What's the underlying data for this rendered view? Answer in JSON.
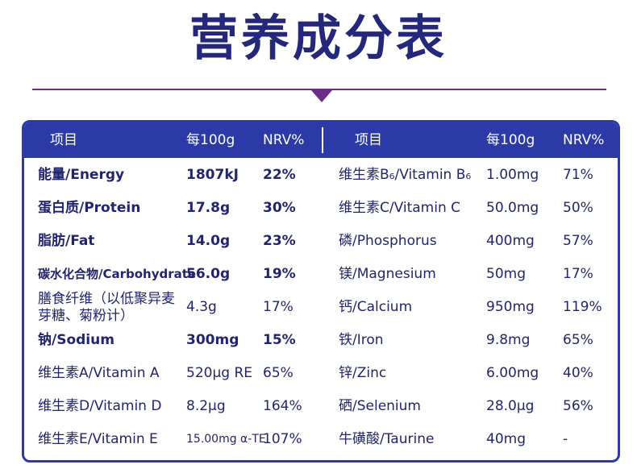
{
  "title": "营养成分表",
  "headers": {
    "left": {
      "item": "项目",
      "per100": "每100g",
      "nrv": "NRV%"
    },
    "right": {
      "item": "项目",
      "per100": "每100g",
      "nrv": "NRV%"
    }
  },
  "left_rows": [
    {
      "name": "能量/Energy",
      "value": "1807kJ",
      "nrv": "22%",
      "bold": true
    },
    {
      "name": "蛋白质/Protein",
      "value": "17.8g",
      "nrv": "30%",
      "bold": true
    },
    {
      "name": "脂肪/Fat",
      "value": "14.0g",
      "nrv": "23%",
      "bold": true
    },
    {
      "name": "碳水化合物/Carbohydrate",
      "value": "56.0g",
      "nrv": "19%",
      "bold": true
    },
    {
      "name": "膳食纤维（以低聚异麦芽糖、菊粉计）",
      "value": "4.3g",
      "nrv": "17%",
      "bold": false
    },
    {
      "name": "钠/Sodium",
      "value": "300mg",
      "nrv": "15%",
      "bold": true
    },
    {
      "name": "维生素A/Vitamin A",
      "value": "520µg RE",
      "nrv": "65%",
      "bold": false
    },
    {
      "name": "维生素D/Vitamin D",
      "value": "8.2µg",
      "nrv": "164%",
      "bold": false
    },
    {
      "name": "维生素E/Vitamin E",
      "value": "15.00mg α-TE",
      "nrv": "107%",
      "bold": false
    }
  ],
  "right_rows": [
    {
      "name": "维生素B₆/Vitamin B₆",
      "value": "1.00mg",
      "nrv": "71%"
    },
    {
      "name": "维生素C/Vitamin C",
      "value": "50.0mg",
      "nrv": "50%"
    },
    {
      "name": "磷/Phosphorus",
      "value": "400mg",
      "nrv": "57%"
    },
    {
      "name": "镁/Magnesium",
      "value": "50mg",
      "nrv": "17%"
    },
    {
      "name": "钙/Calcium",
      "value": "950mg",
      "nrv": "119%"
    },
    {
      "name": "铁/Iron",
      "value": "9.8mg",
      "nrv": "65%"
    },
    {
      "name": "锌/Zinc",
      "value": "6.00mg",
      "nrv": "40%"
    },
    {
      "name": "硒/Selenium",
      "value": "28.0µg",
      "nrv": "56%"
    },
    {
      "name": "牛磺酸/Taurine",
      "value": "40mg",
      "nrv": "-"
    }
  ],
  "colors": {
    "primary": "#2c3aa7",
    "accent": "#6a2e88",
    "text": "#22256e"
  }
}
